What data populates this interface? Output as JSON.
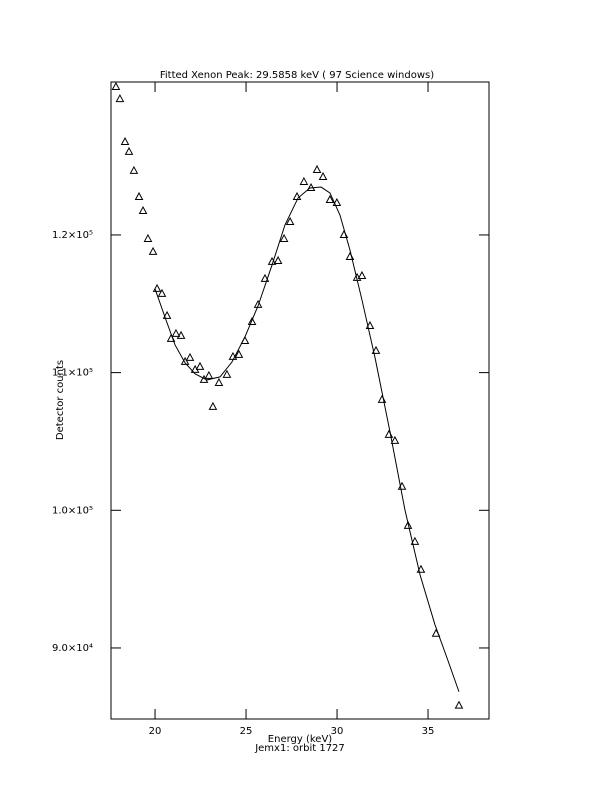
{
  "chart_data": {
    "type": "scatter",
    "title": "Fitted Xenon Peak:     29.5858 keV (     97 Science windows)",
    "x_label": "Energy (keV)",
    "annotation": "Jemx1: orbit 1727",
    "y_label": "Detector counts",
    "xlim": [
      17.58,
      38.35
    ],
    "ylim": [
      84840,
      131110
    ],
    "xticks": [
      20,
      25,
      30,
      35
    ],
    "yticks": [
      {
        "value": 90000,
        "label": "9.0×10⁴"
      },
      {
        "value": 100000,
        "label": "1.0×10⁵"
      },
      {
        "value": 110000,
        "label": "1.1×10⁵"
      },
      {
        "value": 120000,
        "label": "1.2×10⁵"
      }
    ],
    "color": "#000000",
    "x": [
      17.85,
      18.07,
      18.35,
      18.57,
      18.84,
      19.12,
      19.34,
      19.61,
      19.89,
      20.11,
      20.38,
      20.66,
      20.88,
      21.15,
      21.43,
      21.65,
      21.92,
      22.2,
      22.47,
      22.69,
      22.96,
      23.18,
      23.51,
      23.95,
      24.28,
      24.61,
      24.94,
      25.33,
      25.66,
      26.04,
      26.43,
      26.76,
      27.09,
      27.42,
      27.8,
      28.18,
      28.57,
      28.9,
      29.23,
      29.61,
      29.99,
      30.38,
      30.71,
      31.1,
      31.37,
      31.81,
      32.14,
      32.47,
      32.85,
      33.18,
      33.57,
      33.9,
      34.28,
      34.61,
      35.44,
      36.7
    ],
    "values": [
      130745,
      129870,
      126750,
      126030,
      124650,
      122760,
      121740,
      119710,
      118770,
      116080,
      115720,
      114120,
      112450,
      112810,
      112670,
      110780,
      111070,
      110200,
      110420,
      109470,
      109760,
      107510,
      109250,
      109840,
      111140,
      111290,
      112300,
      113680,
      114920,
      116810,
      118040,
      118110,
      119710,
      120940,
      122760,
      123850,
      123410,
      124720,
      124210,
      122540,
      122320,
      120000,
      118400,
      116880,
      117020,
      113390,
      111580,
      108020,
      105480,
      105040,
      101710,
      98870,
      97710,
      95680,
      91030,
      85810
    ],
    "fit": {
      "x": [
        20.0,
        20.6,
        21.1,
        21.65,
        22.2,
        22.85,
        23.57,
        24.23,
        24.94,
        25.66,
        26.43,
        27.14,
        27.86,
        28.51,
        29.12,
        29.61,
        30.16,
        30.71,
        31.37,
        32.09,
        32.91,
        33.73,
        34.56,
        35.38,
        36.04,
        36.7
      ],
      "values": [
        116080,
        113830,
        112010,
        110710,
        109910,
        109470,
        109690,
        110780,
        112590,
        114850,
        117820,
        120730,
        122690,
        123410,
        123480,
        123050,
        121450,
        118910,
        115280,
        111070,
        105700,
        100040,
        95320,
        91690,
        89290,
        86820
      ]
    }
  }
}
